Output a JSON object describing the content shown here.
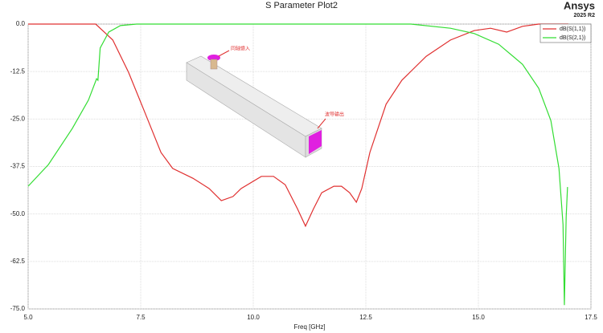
{
  "chart_data": {
    "type": "line",
    "title": "S Parameter Plot2",
    "brand": "Ansys",
    "version": "2025 R2",
    "xlabel": "Freq [GHz]",
    "annotations": [
      "同轴馈入",
      "波导输出"
    ],
    "xlim": [
      5,
      17.5
    ],
    "ylim": [
      -75,
      0
    ],
    "xticks": [
      {
        "value": 5,
        "label": "5.0"
      },
      7.5,
      {
        "value": 10,
        "label": "10.0"
      },
      12.5,
      {
        "value": 15,
        "label": "15.0"
      },
      17.5
    ],
    "yticks": [
      {
        "value": 0,
        "label": "0.0"
      },
      -12.5,
      {
        "value": -25,
        "label": "-25.0"
      },
      -37.5,
      {
        "value": -50,
        "label": "-50.0"
      },
      -62.5,
      {
        "value": -75,
        "label": "-75.0"
      }
    ],
    "grid": true,
    "legend": "upper right",
    "series": [
      {
        "name": "dB(S(1,1))",
        "color": "#e03030",
        "x": [
          5,
          6.5,
          6.88,
          7.23,
          7.59,
          7.95,
          8.21,
          8.66,
          9.02,
          9.29,
          9.55,
          9.73,
          10.18,
          10.45,
          10.71,
          10.98,
          11.16,
          11.34,
          11.52,
          11.79,
          11.96,
          12.14,
          12.29,
          12.41,
          12.59,
          12.95,
          13.3,
          13.84,
          14.38,
          14.91,
          15.27,
          15.63,
          15.98,
          16.34,
          17
        ],
        "values": [
          0,
          0,
          -4.2,
          -12.7,
          -23.2,
          -33.8,
          -38,
          -40.6,
          -43.3,
          -46.5,
          -45.4,
          -43.3,
          -40.1,
          -40.1,
          -42.3,
          -48.6,
          -53.2,
          -48.6,
          -44.4,
          -42.7,
          -42.7,
          -44.4,
          -46.9,
          -43.3,
          -33.8,
          -21.1,
          -14.8,
          -8.5,
          -4.2,
          -1.7,
          -1.1,
          -2.1,
          -0.6,
          0,
          0
        ]
      },
      {
        "name": "dB(S(2,1))",
        "color": "#33dd33",
        "x": [
          5,
          5.45,
          5.98,
          6.34,
          6.52,
          6.55,
          6.6,
          6.79,
          7.05,
          7.41,
          13.5,
          14.38,
          14.91,
          15.45,
          15.98,
          16.34,
          16.61,
          16.79,
          16.88,
          16.91,
          16.95,
          16.98
        ],
        "values": [
          -42.7,
          -37,
          -27.5,
          -20,
          -14.4,
          -14.8,
          -6.3,
          -2.1,
          -0.4,
          0,
          0,
          -1.1,
          -2.5,
          -5.3,
          -10.6,
          -16.9,
          -25.4,
          -38,
          -52.8,
          -74,
          -50.7,
          -42.9
        ]
      }
    ]
  }
}
